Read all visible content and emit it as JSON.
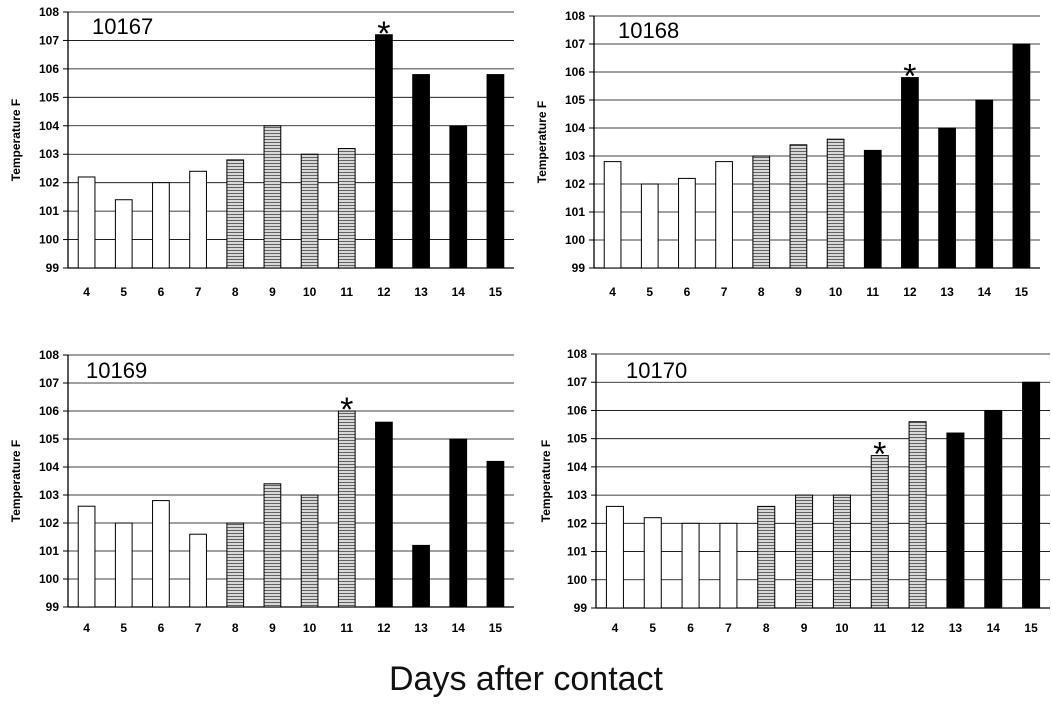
{
  "figure": {
    "xlabel": "Days after contact"
  },
  "colors": {
    "onset": "#000000",
    "grid": "#000000",
    "hatch_fill": "#d8d8d8",
    "hatch_line": "#555555",
    "open_fill": "#ffffff"
  },
  "chart_data": [
    {
      "type": "bar",
      "title": "10167",
      "ylabel": "Temperature F",
      "xlabel": "",
      "ylim": [
        99,
        108
      ],
      "yticks": [
        99,
        100,
        101,
        102,
        103,
        104,
        105,
        106,
        107,
        108
      ],
      "categories": [
        "4",
        "5",
        "6",
        "7",
        "8",
        "9",
        "10",
        "11",
        "12",
        "13",
        "14",
        "15"
      ],
      "values": [
        102.2,
        101.4,
        102.0,
        102.4,
        102.8,
        104.0,
        103.0,
        103.2,
        107.2,
        105.8,
        104.0,
        105.8
      ],
      "bar_styles": [
        "open",
        "open",
        "open",
        "open",
        "hatched",
        "hatched",
        "hatched",
        "hatched",
        "solid",
        "solid",
        "solid",
        "solid"
      ],
      "asterisk_index": 8,
      "annotation": "*",
      "grid": true
    },
    {
      "type": "bar",
      "title": "10168",
      "ylabel": "Temperature F",
      "xlabel": "",
      "ylim": [
        99,
        108
      ],
      "yticks": [
        99,
        100,
        101,
        102,
        103,
        104,
        105,
        106,
        107,
        108
      ],
      "categories": [
        "4",
        "5",
        "6",
        "7",
        "8",
        "9",
        "10",
        "11",
        "12",
        "13",
        "14",
        "15"
      ],
      "values": [
        102.8,
        102.0,
        102.2,
        102.8,
        103.0,
        103.4,
        103.6,
        103.2,
        105.8,
        104.0,
        105.0,
        107.0
      ],
      "bar_styles": [
        "open",
        "open",
        "open",
        "open",
        "hatched",
        "hatched",
        "hatched",
        "solid",
        "solid",
        "solid",
        "solid",
        "solid"
      ],
      "asterisk_index": 8,
      "annotation": "*",
      "grid": true
    },
    {
      "type": "bar",
      "title": "10169",
      "ylabel": "Temperature F",
      "xlabel": "",
      "ylim": [
        99,
        108
      ],
      "yticks": [
        99,
        100,
        101,
        102,
        103,
        104,
        105,
        106,
        107,
        108
      ],
      "categories": [
        "4",
        "5",
        "6",
        "7",
        "8",
        "9",
        "10",
        "11",
        "12",
        "13",
        "14",
        "15"
      ],
      "values": [
        102.6,
        102.0,
        102.8,
        101.6,
        102.0,
        103.4,
        103.0,
        106.0,
        105.6,
        101.2,
        105.0,
        104.2
      ],
      "bar_styles": [
        "open",
        "open",
        "open",
        "open",
        "hatched",
        "hatched",
        "hatched",
        "hatched",
        "solid",
        "solid",
        "solid",
        "solid"
      ],
      "asterisk_index": 7,
      "annotation": "*",
      "grid": true
    },
    {
      "type": "bar",
      "title": "10170",
      "ylabel": "Temperature F",
      "xlabel": "",
      "ylim": [
        99,
        108
      ],
      "yticks": [
        99,
        100,
        101,
        102,
        103,
        104,
        105,
        106,
        107,
        108
      ],
      "categories": [
        "4",
        "5",
        "6",
        "7",
        "8",
        "9",
        "10",
        "11",
        "12",
        "13",
        "14",
        "15"
      ],
      "values": [
        102.6,
        102.2,
        102.0,
        102.0,
        102.6,
        103.0,
        103.0,
        104.4,
        105.6,
        105.2,
        106.0,
        107.0
      ],
      "bar_styles": [
        "open",
        "open",
        "open",
        "open",
        "hatched",
        "hatched",
        "hatched",
        "hatched",
        "hatched",
        "solid",
        "solid",
        "solid"
      ],
      "asterisk_index": 7,
      "annotation": "*",
      "grid": true
    }
  ]
}
